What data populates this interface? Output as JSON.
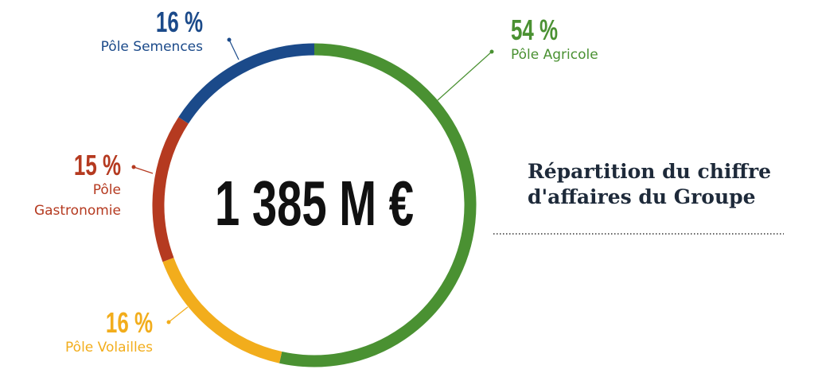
{
  "chart_data": {
    "type": "donut",
    "title": [
      "Répartition du chiffre",
      "d'affaires du Groupe"
    ],
    "center_label": "1 385 M €",
    "categories": [
      "Pôle Agricole",
      "Pôle Volailles",
      "Pôle Gastronomie",
      "Pôle Semences"
    ],
    "values": [
      54,
      16,
      15,
      16
    ],
    "value_labels": [
      "54 %",
      "16 %",
      "15 %",
      "16 %"
    ],
    "colors": [
      "#4a9132",
      "#f2ad1c",
      "#b53a20",
      "#1b4a8a"
    ]
  }
}
